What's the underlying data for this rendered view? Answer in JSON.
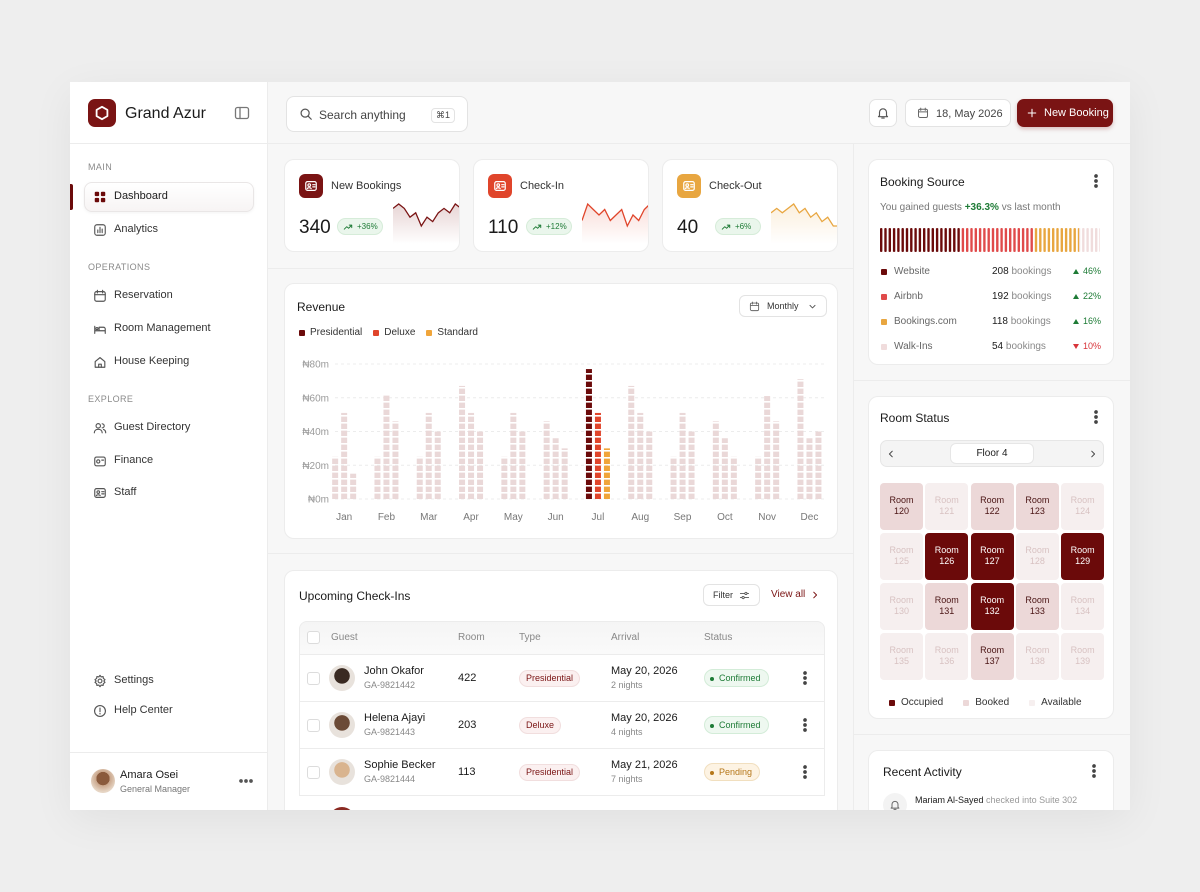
{
  "brand": "Grand Azur",
  "search": {
    "placeholder": "Search anything",
    "shortcut": "⌘1"
  },
  "date": "18, May 2026",
  "new_booking": "New Booking",
  "nav": {
    "sections": [
      {
        "title": "MAIN",
        "items": [
          "Dashboard",
          "Analytics"
        ]
      },
      {
        "title": "OPERATIONS",
        "items": [
          "Reservation",
          "Room Management",
          "House Keeping"
        ]
      },
      {
        "title": "EXPLORE",
        "items": [
          "Guest Directory",
          "Finance",
          "Staff"
        ]
      }
    ],
    "bottom": [
      "Settings",
      "Help Center"
    ]
  },
  "user": {
    "name": "Amara Osei",
    "role": "General Manager"
  },
  "stats": [
    {
      "label": "New Bookings",
      "value": 340,
      "change": "+36%",
      "color": "#7a1414",
      "spark": [
        6,
        7,
        6,
        4,
        5,
        2,
        4,
        3,
        5,
        6,
        5,
        7,
        6
      ]
    },
    {
      "label": "Check-In",
      "value": 110,
      "change": "+12%",
      "color": "#e0452b",
      "spark": [
        4,
        7,
        6,
        5,
        6,
        4,
        5,
        6,
        3,
        5,
        4,
        6,
        7
      ]
    },
    {
      "label": "Check-Out",
      "value": 40,
      "change": "+6%",
      "color": "#e8a640",
      "spark": [
        5,
        6,
        5,
        6,
        7,
        5,
        6,
        4,
        5,
        3,
        4,
        2,
        2
      ]
    }
  ],
  "chart_data": {
    "type": "bar",
    "title": "Revenue",
    "period": "Monthly",
    "categories": [
      "Jan",
      "Feb",
      "Mar",
      "Apr",
      "May",
      "Jun",
      "Jul",
      "Aug",
      "Sep",
      "Oct",
      "Nov",
      "Dec"
    ],
    "series": [
      {
        "name": "Presidential",
        "color": "#6b0a0a",
        "values": [
          25,
          25,
          25,
          67,
          25,
          46,
          77,
          67,
          25,
          46,
          25,
          71
        ]
      },
      {
        "name": "Deluxe",
        "color": "#e0452b",
        "values": [
          51,
          62,
          51,
          51,
          51,
          36,
          51,
          51,
          51,
          36,
          61,
          36
        ]
      },
      {
        "name": "Standard",
        "color": "#f0a53a",
        "values": [
          15,
          46,
          40,
          40,
          40,
          30,
          30,
          40,
          40,
          25,
          46,
          40
        ]
      }
    ],
    "ylim": [
      0,
      80
    ],
    "yticks": [
      {
        "value": 0,
        "label": "₦0m"
      },
      {
        "value": 20,
        "label": "₦20m"
      },
      {
        "value": 40,
        "label": "₦40m"
      },
      {
        "value": 60,
        "label": "₦60m"
      },
      {
        "value": 80,
        "label": "₦80m"
      }
    ],
    "grid": true,
    "highlight_category": "Jul",
    "muted_color": "#ead8d8"
  },
  "booking_source": {
    "title": "Booking Source",
    "note": [
      "You gained guests",
      "+36.3%",
      "vs last month"
    ],
    "unit": "bookings",
    "sources": [
      {
        "name": "Website",
        "value": 208,
        "change": "46%",
        "direction": "up",
        "color": "#6b0a0a"
      },
      {
        "name": "Airbnb",
        "value": 192,
        "change": "22%",
        "direction": "up",
        "color": "#e04a4a"
      },
      {
        "name": "Bookings.com",
        "value": 118,
        "change": "16%",
        "direction": "up",
        "color": "#e8a640"
      },
      {
        "name": "Walk-Ins",
        "value": 54,
        "change": "10%",
        "direction": "down",
        "color": "#f0dcdc"
      }
    ]
  },
  "room_status": {
    "title": "Room Status",
    "floor": "Floor 4",
    "room_word": "Room",
    "rooms": [
      {
        "number": 120,
        "status": "booked"
      },
      {
        "number": 121,
        "status": "available"
      },
      {
        "number": 122,
        "status": "booked"
      },
      {
        "number": 123,
        "status": "booked"
      },
      {
        "number": 124,
        "status": "available"
      },
      {
        "number": 125,
        "status": "available"
      },
      {
        "number": 126,
        "status": "occupied"
      },
      {
        "number": 127,
        "status": "occupied"
      },
      {
        "number": 128,
        "status": "available"
      },
      {
        "number": 129,
        "status": "occupied"
      },
      {
        "number": 130,
        "status": "available"
      },
      {
        "number": 131,
        "status": "booked"
      },
      {
        "number": 132,
        "status": "occupied"
      },
      {
        "number": 133,
        "status": "booked"
      },
      {
        "number": 134,
        "status": "available"
      },
      {
        "number": 135,
        "status": "available"
      },
      {
        "number": 136,
        "status": "available"
      },
      {
        "number": 137,
        "status": "booked"
      },
      {
        "number": 138,
        "status": "available"
      },
      {
        "number": 139,
        "status": "available"
      }
    ],
    "legend": [
      {
        "name": "Occupied",
        "status": "occupied"
      },
      {
        "name": "Booked",
        "status": "booked"
      },
      {
        "name": "Available",
        "status": "available"
      }
    ]
  },
  "check_ins": {
    "title": "Upcoming Check-Ins",
    "filter": "Filter",
    "view_all": "View all",
    "columns": [
      "Guest",
      "Room",
      "Type",
      "Arrival",
      "Status"
    ],
    "rows": [
      {
        "guest": "John Okafor",
        "id": "GA-9821442",
        "room": 422,
        "type": "Presidential",
        "arrival": "May 20, 2026",
        "nights": "2 nights",
        "status": "Confirmed"
      },
      {
        "guest": "Helena Ajayi",
        "id": "GA-9821443",
        "room": 203,
        "type": "Deluxe",
        "arrival": "May 20, 2026",
        "nights": "4 nights",
        "status": "Confirmed"
      },
      {
        "guest": "Sophie Becker",
        "id": "GA-9821444",
        "room": 113,
        "type": "Presidential",
        "arrival": "May 21, 2026",
        "nights": "7 nights",
        "status": "Pending"
      }
    ]
  },
  "recent_activity": {
    "title": "Recent Activity",
    "items": [
      {
        "name": "Mariam Al-Sayed",
        "text": "checked into Suite 302"
      }
    ]
  }
}
